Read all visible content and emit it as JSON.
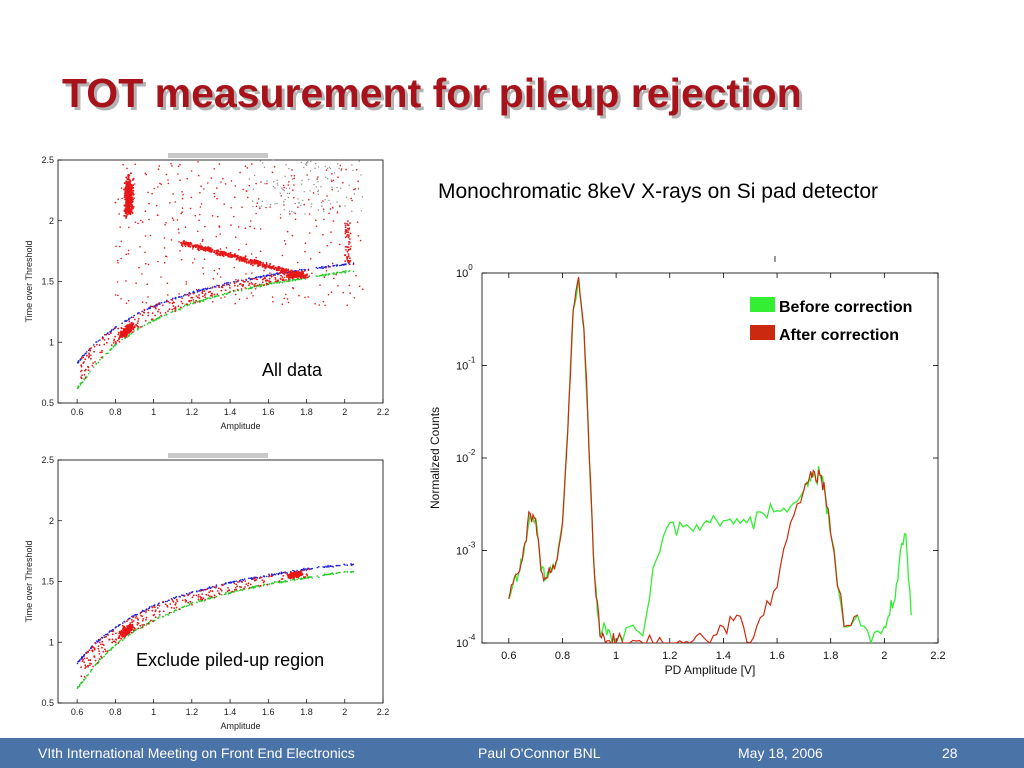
{
  "slide": {
    "title": "TOT measurement for pileup rejection",
    "subtitle": "Monochromatic 8keV X-rays on Si pad detector"
  },
  "footer": {
    "conference": "VIth International Meeting on Front End Electronics",
    "author": "Paul O'Connor BNL",
    "date": "May 18, 2006",
    "page": "28"
  },
  "colors": {
    "title": "#a8121a",
    "footer_bg": "#4a73a8",
    "before": "#33ee33",
    "after": "#cc2a10",
    "scatter_red": "#e81818",
    "fit_blue": "#1f1fd8",
    "fit_green": "#22cc22"
  },
  "chart_data": [
    {
      "type": "scatter",
      "annotation": "All data",
      "xlabel": "Amplitude",
      "ylabel": "Time over Threshold",
      "xlim": [
        0.5,
        2.2
      ],
      "ylim": [
        0.5,
        2.5
      ],
      "xticks": [
        "0.6",
        "0.8",
        "1",
        "1.2",
        "1.4",
        "1.6",
        "1.8",
        "2",
        "2.2"
      ],
      "yticks": [
        "0.5",
        "1",
        "1.5",
        "2",
        "2.5"
      ],
      "fit_blue": {
        "x": [
          0.6,
          0.7,
          0.8,
          0.9,
          1.0,
          1.2,
          1.4,
          1.6,
          1.8,
          2.0,
          2.05
        ],
        "y": [
          0.83,
          1.0,
          1.12,
          1.22,
          1.3,
          1.41,
          1.49,
          1.55,
          1.6,
          1.64,
          1.65
        ]
      },
      "fit_green": {
        "x": [
          0.6,
          0.7,
          0.8,
          0.9,
          1.0,
          1.2,
          1.4,
          1.6,
          1.8,
          2.0,
          2.05
        ],
        "y": [
          0.62,
          0.82,
          0.98,
          1.09,
          1.18,
          1.32,
          1.41,
          1.48,
          1.53,
          1.58,
          1.59
        ]
      },
      "clusters": [
        {
          "name": "main",
          "x": [
            0.82,
            0.92
          ],
          "y": [
            1.95,
            2.45
          ]
        },
        {
          "name": "band",
          "x": [
            1.15,
            1.8
          ],
          "y": [
            1.55,
            1.85
          ]
        },
        {
          "name": "fit",
          "x": [
            0.78,
            0.95
          ],
          "y": [
            1.05,
            1.25
          ]
        }
      ]
    },
    {
      "type": "scatter",
      "annotation": "Exclude piled-up region",
      "xlabel": "Amplitude",
      "ylabel": "Time over Threshold",
      "xlim": [
        0.5,
        2.2
      ],
      "ylim": [
        0.5,
        2.5
      ],
      "xticks": [
        "0.6",
        "0.8",
        "1",
        "1.2",
        "1.4",
        "1.6",
        "1.8",
        "2",
        "2.2"
      ],
      "yticks": [
        "0.5",
        "1",
        "1.5",
        "2",
        "2.5"
      ],
      "fit_blue": {
        "x": [
          0.6,
          0.7,
          0.8,
          0.9,
          1.0,
          1.2,
          1.4,
          1.6,
          1.8,
          2.0
        ],
        "y": [
          0.83,
          1.0,
          1.12,
          1.22,
          1.3,
          1.41,
          1.49,
          1.55,
          1.6,
          1.64
        ]
      },
      "fit_green": {
        "x": [
          0.6,
          0.7,
          0.8,
          0.9,
          1.0,
          1.2,
          1.4,
          1.6,
          1.8,
          2.0
        ],
        "y": [
          0.62,
          0.82,
          0.98,
          1.09,
          1.18,
          1.32,
          1.41,
          1.48,
          1.53,
          1.58
        ]
      }
    },
    {
      "type": "line",
      "xlabel": "PD Amplitude [V]",
      "ylabel": "Normalized Counts",
      "xlim": [
        0.5,
        2.2
      ],
      "ylim": [
        0.0001,
        1
      ],
      "log_y": true,
      "xticks": [
        "0.6",
        "0.8",
        "1",
        "1.2",
        "1.4",
        "1.6",
        "1.8",
        "2",
        "2.2"
      ],
      "yticks": [
        {
          "base": "10",
          "exp": "0"
        },
        {
          "base": "10",
          "exp": "-1"
        },
        {
          "base": "10",
          "exp": "-2"
        },
        {
          "base": "10",
          "exp": "-3"
        },
        {
          "base": "10",
          "exp": "-4"
        }
      ],
      "legend_position": "top-right",
      "series": [
        {
          "name": "Before correction",
          "x": [
            0.6,
            0.62,
            0.64,
            0.66,
            0.68,
            0.7,
            0.72,
            0.74,
            0.76,
            0.78,
            0.8,
            0.82,
            0.84,
            0.86,
            0.88,
            0.9,
            0.92,
            0.94,
            0.96,
            0.98,
            1.0,
            1.05,
            1.1,
            1.15,
            1.2,
            1.25,
            1.3,
            1.35,
            1.4,
            1.45,
            1.5,
            1.55,
            1.6,
            1.65,
            1.7,
            1.72,
            1.74,
            1.76,
            1.78,
            1.8,
            1.85,
            1.9,
            1.95,
            2.0,
            2.02,
            2.04,
            2.06,
            2.08,
            2.1
          ],
          "y": [
            0.0003,
            0.0005,
            0.0006,
            0.0012,
            0.0025,
            0.0022,
            0.0006,
            0.0005,
            0.0006,
            0.0008,
            0.002,
            0.02,
            0.4,
            0.9,
            0.25,
            0.01,
            0.0005,
            0.00012,
            0.00015,
            0.00012,
            0.0001,
            0.00015,
            0.00012,
            0.0008,
            0.002,
            0.0018,
            0.0019,
            0.002,
            0.0021,
            0.0022,
            0.0023,
            0.0025,
            0.0027,
            0.003,
            0.0045,
            0.006,
            0.007,
            0.0065,
            0.004,
            0.0015,
            0.00015,
            0.0002,
            0.0001,
            0.00015,
            0.0002,
            0.0003,
            0.001,
            0.0015,
            0.0002
          ]
        },
        {
          "name": "After correction",
          "x": [
            0.6,
            0.62,
            0.64,
            0.66,
            0.68,
            0.7,
            0.72,
            0.74,
            0.76,
            0.78,
            0.8,
            0.82,
            0.84,
            0.86,
            0.88,
            0.9,
            0.92,
            0.94,
            0.96,
            0.98,
            1.0,
            1.05,
            1.1,
            1.15,
            1.2,
            1.25,
            1.3,
            1.35,
            1.4,
            1.45,
            1.5,
            1.55,
            1.6,
            1.65,
            1.7,
            1.72,
            1.74,
            1.76,
            1.78,
            1.8,
            1.85,
            1.9
          ],
          "y": [
            0.0003,
            0.0005,
            0.0006,
            0.0012,
            0.0025,
            0.0022,
            0.0006,
            0.0005,
            0.0006,
            0.0008,
            0.002,
            0.02,
            0.4,
            0.9,
            0.25,
            0.01,
            0.0005,
            0.00012,
            0.0001,
            0.0001,
            0.0001,
            0.0001,
            0.0001,
            0.0001,
            0.0001,
            0.0001,
            0.00012,
            0.0001,
            0.00015,
            0.0002,
            0.0001,
            0.0002,
            0.0004,
            0.002,
            0.0045,
            0.006,
            0.007,
            0.0065,
            0.004,
            0.0015,
            0.00015,
            0.0002
          ]
        }
      ]
    }
  ]
}
